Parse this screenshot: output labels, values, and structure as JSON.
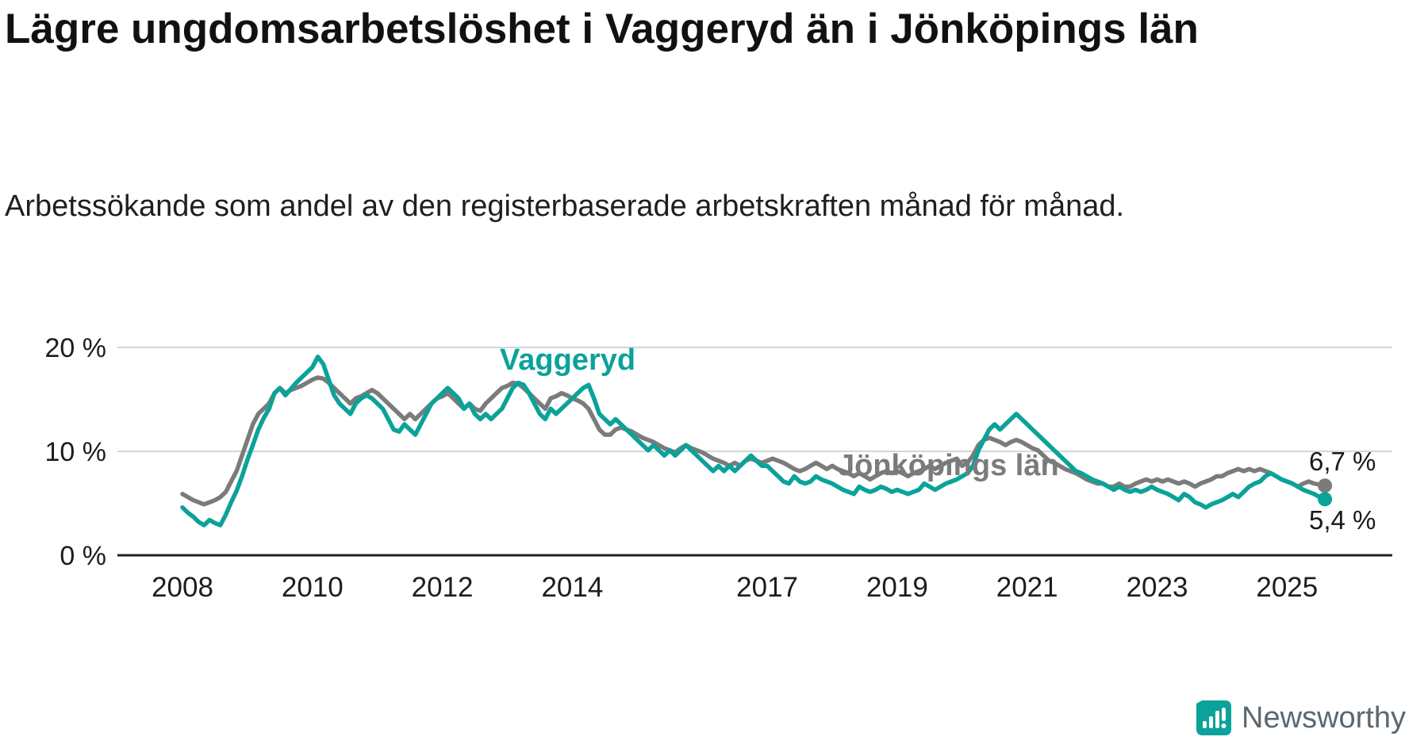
{
  "header": {
    "title": "Lägre ungdomsarbetslöshet i Vaggeryd än i Jönköpings län",
    "subtitle": "Arbetssökande som andel av den registerbaserade arbetskraften månad för månad."
  },
  "footer": {
    "brand": "Newsworthy"
  },
  "colors": {
    "vaggeryd_teal": "#0ba29a",
    "jonkoping_gray": "#7b7b7b",
    "grid": "#d6d6d6",
    "axis": "#222222",
    "text": "#1d1d1d",
    "brand_text": "#5b6770"
  },
  "chart_data": {
    "type": "line",
    "title": "Lägre ungdomsarbetslöshet i Vaggeryd än i Jönköpings län",
    "subtitle": "Arbetssökande som andel av den registerbaserade arbetskraften månad för månad.",
    "x_unit": "month",
    "x_start_year": 2008,
    "x_end": "2025-08",
    "x_tick_values": [
      2008,
      2010,
      2012,
      2014,
      2017,
      2019,
      2021,
      2023,
      2025
    ],
    "x_tick_labels": [
      "2008",
      "2010",
      "2012",
      "2014",
      "2017",
      "2019",
      "2021",
      "2023",
      "2025"
    ],
    "y_ticks": [
      0,
      10,
      20
    ],
    "y_tick_labels": [
      "0 %",
      "10 %",
      "20 %"
    ],
    "ylabel": "",
    "xlabel": "",
    "ylim": [
      0,
      21.5
    ],
    "grid": "horizontal",
    "legend_position": "inline-labels",
    "series": [
      {
        "name": "Jönköpings län",
        "label": "Jönköpings län",
        "end_label": "6,7 %",
        "end_value": 6.7,
        "color": "#7b7b7b",
        "values": [
          5.9,
          5.6,
          5.3,
          5.1,
          4.9,
          5.1,
          5.3,
          5.6,
          6.1,
          7.1,
          8.1,
          9.6,
          11.1,
          12.6,
          13.6,
          14.1,
          14.6,
          15.6,
          16.1,
          15.6,
          15.9,
          16.1,
          16.3,
          16.6,
          16.9,
          17.1,
          17.0,
          16.6,
          16.1,
          15.6,
          15.1,
          14.6,
          15.1,
          15.3,
          15.6,
          15.9,
          15.6,
          15.1,
          14.6,
          14.1,
          13.6,
          13.1,
          13.6,
          13.1,
          13.6,
          14.1,
          14.6,
          15.1,
          15.3,
          15.6,
          15.1,
          14.6,
          14.1,
          14.6,
          14.1,
          13.9,
          14.6,
          15.1,
          15.6,
          16.1,
          16.3,
          16.6,
          16.5,
          16.1,
          15.6,
          15.1,
          14.6,
          14.1,
          15.1,
          15.3,
          15.6,
          15.4,
          15.1,
          14.9,
          14.6,
          14.1,
          13.1,
          12.1,
          11.6,
          11.6,
          12.1,
          12.3,
          12.1,
          11.9,
          11.6,
          11.3,
          11.1,
          10.9,
          10.6,
          10.3,
          10.1,
          9.9,
          10.3,
          10.6,
          10.3,
          10.1,
          9.9,
          9.6,
          9.3,
          9.1,
          8.9,
          8.6,
          8.9,
          8.6,
          9.1,
          9.3,
          9.1,
          8.9,
          9.1,
          9.3,
          9.1,
          8.9,
          8.6,
          8.3,
          8.1,
          8.3,
          8.6,
          8.9,
          8.6,
          8.3,
          8.6,
          8.3,
          8.1,
          7.9,
          7.6,
          7.9,
          7.6,
          7.3,
          7.6,
          7.9,
          8.1,
          7.9,
          8.1,
          7.9,
          7.6,
          7.9,
          8.1,
          8.3,
          8.6,
          8.3,
          8.6,
          8.9,
          9.1,
          9.3,
          8.6,
          8.9,
          9.6,
          10.6,
          11.1,
          11.3,
          11.1,
          10.9,
          10.6,
          10.9,
          11.1,
          10.9,
          10.6,
          10.3,
          10.1,
          9.6,
          9.1,
          8.9,
          8.6,
          8.3,
          8.1,
          7.9,
          7.6,
          7.3,
          7.1,
          6.9,
          6.9,
          6.6,
          6.6,
          6.9,
          6.6,
          6.6,
          6.9,
          7.1,
          7.3,
          7.1,
          7.3,
          7.1,
          7.3,
          7.1,
          6.9,
          7.1,
          6.9,
          6.6,
          6.9,
          7.1,
          7.3,
          7.6,
          7.6,
          7.9,
          8.1,
          8.3,
          8.1,
          8.3,
          8.1,
          8.3,
          8.1,
          7.9,
          7.6,
          7.3,
          7.1,
          6.9,
          6.6,
          6.9,
          7.1,
          6.9,
          6.8,
          6.7
        ]
      },
      {
        "name": "Vaggeryd",
        "label": "Vaggeryd",
        "end_label": "5,4 %",
        "end_value": 5.4,
        "color": "#0ba29a",
        "values": [
          4.6,
          4.1,
          3.7,
          3.2,
          2.9,
          3.4,
          3.1,
          2.9,
          3.9,
          5.1,
          6.2,
          7.6,
          9.2,
          10.6,
          12.1,
          13.2,
          14.1,
          15.6,
          16.1,
          15.4,
          16.0,
          16.6,
          17.1,
          17.6,
          18.1,
          19.1,
          18.4,
          16.9,
          15.4,
          14.6,
          14.1,
          13.6,
          14.6,
          15.1,
          15.4,
          15.1,
          14.6,
          14.1,
          13.1,
          12.1,
          11.9,
          12.6,
          12.1,
          11.6,
          12.6,
          13.6,
          14.6,
          15.1,
          15.6,
          16.1,
          15.6,
          15.1,
          14.1,
          14.6,
          13.6,
          13.1,
          13.6,
          13.1,
          13.6,
          14.1,
          15.1,
          16.1,
          16.6,
          16.4,
          15.6,
          14.6,
          13.6,
          13.1,
          14.1,
          13.6,
          14.1,
          14.6,
          15.1,
          15.6,
          16.1,
          16.4,
          15.1,
          13.6,
          13.1,
          12.6,
          13.1,
          12.6,
          12.1,
          11.6,
          11.1,
          10.6,
          10.1,
          10.6,
          10.1,
          9.6,
          10.1,
          9.6,
          10.1,
          10.6,
          10.1,
          9.6,
          9.1,
          8.6,
          8.1,
          8.6,
          8.1,
          8.6,
          8.1,
          8.6,
          9.1,
          9.6,
          9.1,
          8.6,
          8.6,
          8.1,
          7.6,
          7.1,
          6.9,
          7.6,
          7.1,
          6.9,
          7.1,
          7.6,
          7.3,
          7.1,
          6.9,
          6.6,
          6.3,
          6.1,
          5.9,
          6.6,
          6.3,
          6.1,
          6.3,
          6.6,
          6.4,
          6.1,
          6.3,
          6.1,
          5.9,
          6.1,
          6.3,
          6.9,
          6.6,
          6.3,
          6.6,
          6.9,
          7.1,
          7.3,
          7.6,
          7.9,
          8.6,
          10.1,
          11.1,
          12.1,
          12.6,
          12.1,
          12.6,
          13.1,
          13.6,
          13.1,
          12.6,
          12.1,
          11.6,
          11.1,
          10.6,
          10.1,
          9.6,
          9.1,
          8.6,
          8.1,
          7.9,
          7.6,
          7.3,
          7.1,
          6.9,
          6.6,
          6.3,
          6.6,
          6.3,
          6.1,
          6.3,
          6.1,
          6.3,
          6.6,
          6.3,
          6.1,
          5.9,
          5.6,
          5.3,
          5.9,
          5.6,
          5.1,
          4.9,
          4.6,
          4.9,
          5.1,
          5.3,
          5.6,
          5.9,
          5.6,
          6.1,
          6.6,
          6.9,
          7.1,
          7.6,
          7.9,
          7.6,
          7.3,
          7.1,
          6.9,
          6.6,
          6.3,
          6.1,
          5.9,
          5.6,
          5.4
        ]
      }
    ]
  }
}
